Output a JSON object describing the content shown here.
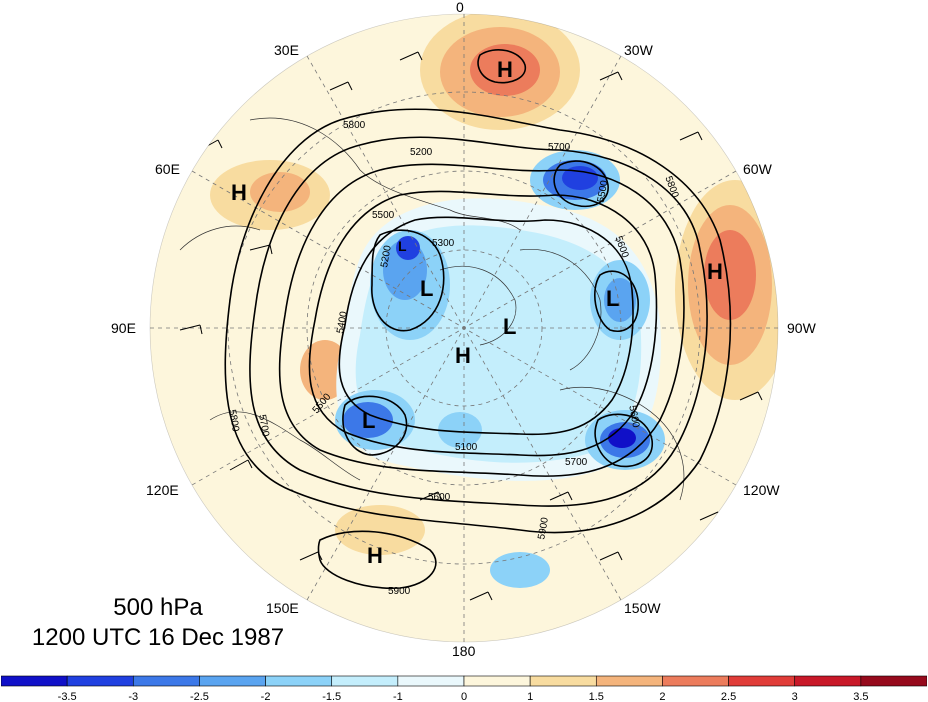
{
  "title": {
    "level": "500 hPa",
    "time": "1200 UTC 16 Dec 1987"
  },
  "longitude_labels": [
    "0",
    "30W",
    "60W",
    "90W",
    "120W",
    "150W",
    "180",
    "150E",
    "120E",
    "90E",
    "60E",
    "30E"
  ],
  "contour_labels": [
    "5800",
    "5700",
    "5500",
    "5600",
    "5800",
    "5900",
    "5700",
    "5600",
    "5500",
    "5300",
    "5200",
    "5400",
    "5200",
    "5100",
    "5500",
    "5600",
    "5700",
    "5800",
    "5900"
  ],
  "centers": [
    {
      "label": "H",
      "kind": "high"
    },
    {
      "label": "H",
      "kind": "high"
    },
    {
      "label": "H",
      "kind": "high"
    },
    {
      "label": "H",
      "kind": "high"
    },
    {
      "label": "H",
      "kind": "high"
    },
    {
      "label": "L",
      "kind": "low"
    },
    {
      "label": "L",
      "kind": "low"
    },
    {
      "label": "L",
      "kind": "low"
    },
    {
      "label": "L",
      "kind": "low"
    },
    {
      "label": "L",
      "kind": "low"
    }
  ],
  "colorbar": {
    "tick_labels": [
      "-3.5",
      "-3",
      "-2.5",
      "-2",
      "-1.5",
      "-1",
      "0",
      "1",
      "1.5",
      "2",
      "2.5",
      "3",
      "3.5"
    ],
    "colors": [
      "#1010c8",
      "#2040e0",
      "#3c78e8",
      "#5aa4f0",
      "#8cd2f8",
      "#c4eefc",
      "#eaf8fc",
      "#fdf6dc",
      "#f8dca0",
      "#f4b47c",
      "#ec7c5c",
      "#e03c38",
      "#c81828",
      "#960a1c"
    ]
  },
  "palette": {
    "background": "#fdf6dc",
    "ocean_tint": "#fbefd2"
  }
}
